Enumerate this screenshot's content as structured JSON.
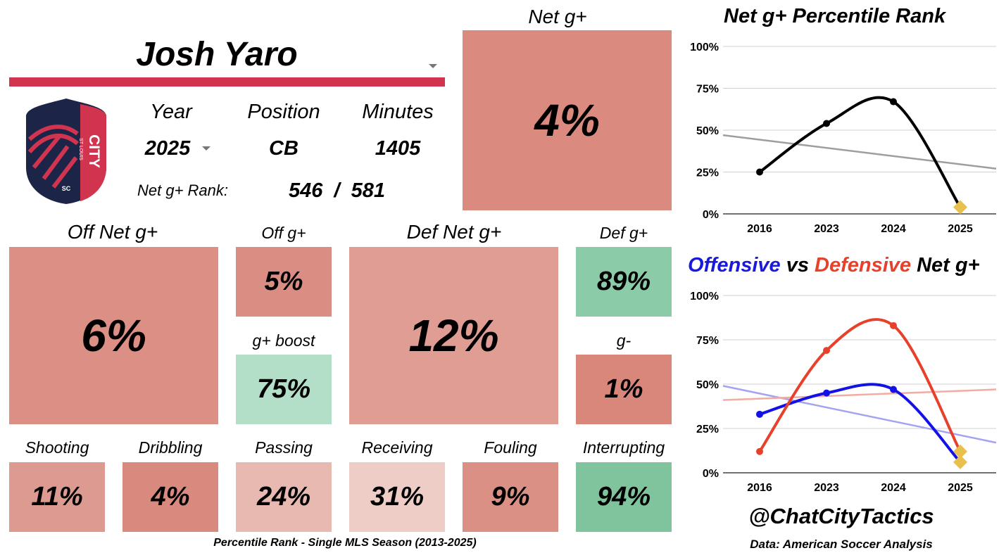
{
  "player": {
    "name": "Josh Yaro"
  },
  "club": {
    "logo_text": "CITY",
    "logo_sub": "ST LOUIS",
    "logo_sc": "SC",
    "accent": "#d1344f",
    "navy": "#1c2448"
  },
  "info": {
    "year_label": "Year",
    "year_value": "2025",
    "position_label": "Position",
    "position_value": "CB",
    "minutes_label": "Minutes",
    "minutes_value": "1405",
    "rank_label": "Net g+ Rank:",
    "rank_value": "546",
    "rank_sep": "/",
    "rank_total": "581"
  },
  "net": {
    "label": "Net g+",
    "value": "4%",
    "color": "#da8a7e"
  },
  "off_net": {
    "label": "Off Net g+",
    "value": "6%",
    "color": "#dc8f84"
  },
  "off_g": {
    "label": "Off g+",
    "value": "5%",
    "color": "#da8d82"
  },
  "g_boost": {
    "label": "g+ boost",
    "value": "75%",
    "color": "#b3dec8"
  },
  "def_net": {
    "label": "Def Net g+",
    "value": "12%",
    "color": "#df9d93"
  },
  "def_g": {
    "label": "Def g+",
    "value": "89%",
    "color": "#8bcba8"
  },
  "g_minus": {
    "label": "g-",
    "value": "1%",
    "color": "#d9877b"
  },
  "actions": [
    {
      "label": "Shooting",
      "value": "11%",
      "color": "#dd9a90"
    },
    {
      "label": "Dribbling",
      "value": "4%",
      "color": "#d98a7e"
    },
    {
      "label": "Passing",
      "value": "24%",
      "color": "#e8b9b1"
    },
    {
      "label": "Receiving",
      "value": "31%",
      "color": "#eecdc7"
    },
    {
      "label": "Fouling",
      "value": "9%",
      "color": "#db9086"
    },
    {
      "label": "Interrupting",
      "value": "94%",
      "color": "#7fc49c"
    }
  ],
  "footer": {
    "note": "Percentile Rank - Single MLS Season (2013-2025)",
    "handle": "@ChatCityTactics",
    "source": "Data: American Soccer Analysis"
  },
  "chart_data": [
    {
      "type": "line",
      "title": "Net g+ Percentile Rank",
      "categories": [
        "2016",
        "2023",
        "2024",
        "2025"
      ],
      "y_ticks": [
        "0%",
        "25%",
        "50%",
        "75%",
        "100%"
      ],
      "ylim": [
        0,
        100
      ],
      "grid": true,
      "series": [
        {
          "values": [
            25,
            54,
            67,
            4
          ],
          "color": "#000000"
        }
      ],
      "trend": {
        "start": 47,
        "end": 27,
        "color": "#9e9e9e"
      }
    },
    {
      "type": "line",
      "title_parts": [
        {
          "text": "Offensive",
          "color": "#1a1adb"
        },
        {
          "text": " vs ",
          "color": "#000000"
        },
        {
          "text": "Defensive",
          "color": "#e8412b"
        },
        {
          "text": " Net g+",
          "color": "#000000"
        }
      ],
      "categories": [
        "2016",
        "2023",
        "2024",
        "2025"
      ],
      "y_ticks": [
        "0%",
        "25%",
        "50%",
        "75%",
        "100%"
      ],
      "ylim": [
        0,
        100
      ],
      "grid": true,
      "series": [
        {
          "values": [
            33,
            45,
            47,
            6
          ],
          "color": "#1212e6"
        },
        {
          "values": [
            12,
            69,
            83,
            12
          ],
          "color": "#e8412b"
        }
      ],
      "trends": [
        {
          "start": 49,
          "end": 17,
          "color": "#a3a3f2"
        },
        {
          "start": 41,
          "end": 47,
          "color": "#f2aca2"
        }
      ]
    }
  ]
}
